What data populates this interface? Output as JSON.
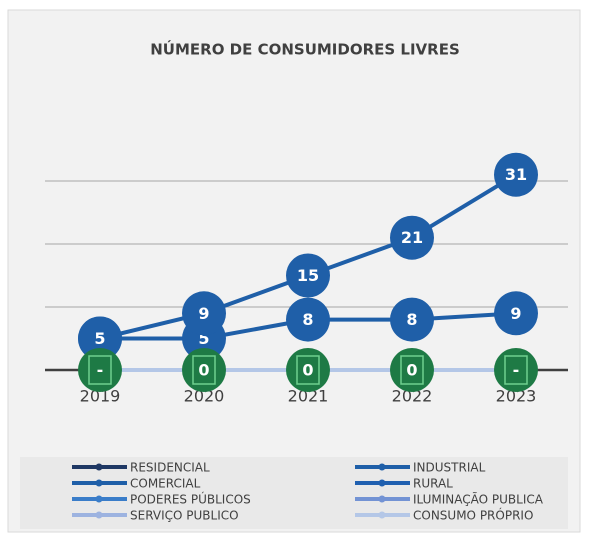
{
  "chart_data": {
    "type": "line",
    "title": "NÚMERO DE CONSUMIDORES LIVRES",
    "categories": [
      "2019",
      "2020",
      "2021",
      "2022",
      "2023"
    ],
    "ylim": [
      0,
      35
    ],
    "yticks": [
      0,
      10,
      20,
      30
    ],
    "grid": true,
    "legend": "bottom",
    "series": [
      {
        "name": "RESIDENCIAL",
        "color": "#1f3864",
        "values": [
          0,
          0,
          0,
          0,
          0
        ]
      },
      {
        "name": "INDUSTRIAL",
        "color": "#1f5fa8",
        "values": [
          5,
          5,
          8,
          8,
          9
        ],
        "show_labels": true
      },
      {
        "name": "COMERCIAL",
        "color": "#1f5fa8",
        "values": [
          5,
          9,
          15,
          21,
          31
        ],
        "show_labels": true
      },
      {
        "name": "RURAL",
        "color": "#2060b0",
        "values": [
          0,
          0,
          0,
          0,
          0
        ]
      },
      {
        "name": "PODERES PÚBLICOS",
        "color": "#3a7dc9",
        "values": [
          0,
          0,
          0,
          0,
          0
        ],
        "show_labels": true,
        "label_color": "#1e7a45",
        "value_labels": [
          "-",
          "0",
          "0",
          "0",
          "-"
        ]
      },
      {
        "name": "ILUMINAÇÃO PUBLICA",
        "color": "#7393d4",
        "values": [
          0,
          0,
          0,
          0,
          0
        ]
      },
      {
        "name": "SERVIÇO PUBLICO",
        "color": "#9db3e0",
        "values": [
          0,
          0,
          0,
          0,
          0
        ]
      },
      {
        "name": "CONSUMO PRÓPRIO",
        "color": "#b4c7e7",
        "values": [
          0,
          0,
          0,
          0,
          0
        ]
      }
    ]
  }
}
